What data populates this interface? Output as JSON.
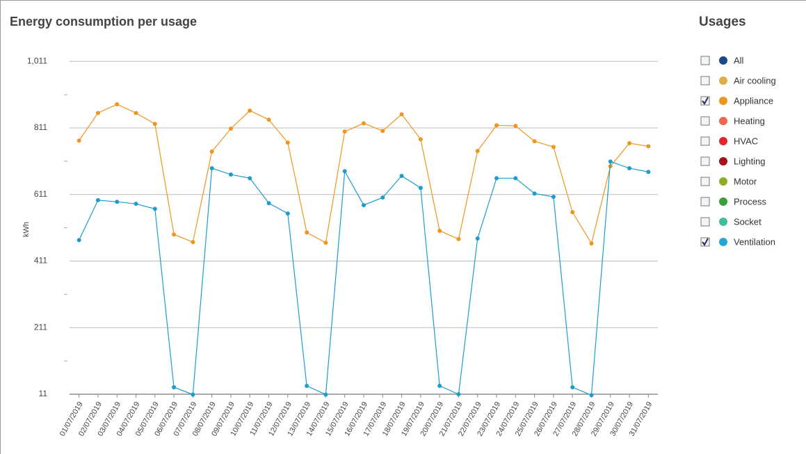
{
  "chart_data": {
    "type": "line",
    "title": "Energy consumption per usage",
    "y_label": "kWh",
    "categories": [
      "01/07/2019",
      "02/07/2019",
      "03/07/2019",
      "04/07/2019",
      "05/07/2019",
      "06/07/2019",
      "07/07/2019",
      "08/07/2019",
      "09/07/2019",
      "10/07/2019",
      "11/07/2019",
      "12/07/2019",
      "13/07/2019",
      "14/07/2019",
      "15/07/2019",
      "16/07/2019",
      "17/07/2019",
      "18/07/2019",
      "19/07/2019",
      "20/07/2019",
      "21/07/2019",
      "22/07/2019",
      "23/07/2019",
      "24/07/2019",
      "25/07/2019",
      "26/07/2019",
      "27/07/2019",
      "28/07/2019",
      "29/07/2019",
      "30/07/2019",
      "31/07/2019"
    ],
    "series": [
      {
        "name": "Appliance",
        "color": "#f0951e",
        "values": [
          773,
          856,
          882,
          856,
          823,
          491,
          468,
          740,
          809,
          863,
          836,
          767,
          497,
          466,
          800,
          825,
          802,
          852,
          777,
          502,
          477,
          742,
          819,
          817,
          771,
          754,
          558,
          464,
          696,
          765,
          756
        ]
      },
      {
        "name": "Ventilation",
        "color": "#1e9ccc",
        "values": [
          474,
          594,
          589,
          583,
          568,
          32,
          10,
          690,
          671,
          660,
          585,
          554,
          36,
          10,
          681,
          579,
          602,
          667,
          631,
          36,
          11,
          479,
          660,
          660,
          614,
          604,
          32,
          8,
          710,
          690,
          679
        ]
      }
    ],
    "ylim": [
      11,
      1091
    ],
    "yticks": [
      11,
      211,
      411,
      611,
      811,
      {
        "value": 1011,
        "label": "1,011"
      }
    ],
    "grid": true
  },
  "legend": {
    "title": "Usages",
    "items": [
      {
        "name": "All",
        "color": "#1a4a86",
        "checked": false
      },
      {
        "name": "Air cooling",
        "color": "#e0ac45",
        "checked": false
      },
      {
        "name": "Appliance",
        "color": "#f0951e",
        "checked": true
      },
      {
        "name": "Heating",
        "color": "#f2664e",
        "checked": false
      },
      {
        "name": "HVAC",
        "color": "#e3242b",
        "checked": false
      },
      {
        "name": "Lighting",
        "color": "#a50f15",
        "checked": false
      },
      {
        "name": "Motor",
        "color": "#8bae2a",
        "checked": false
      },
      {
        "name": "Process",
        "color": "#3a9f3a",
        "checked": false
      },
      {
        "name": "Socket",
        "color": "#3cbf9f",
        "checked": false
      },
      {
        "name": "Ventilation",
        "color": "#26a6d4",
        "checked": true
      }
    ]
  }
}
